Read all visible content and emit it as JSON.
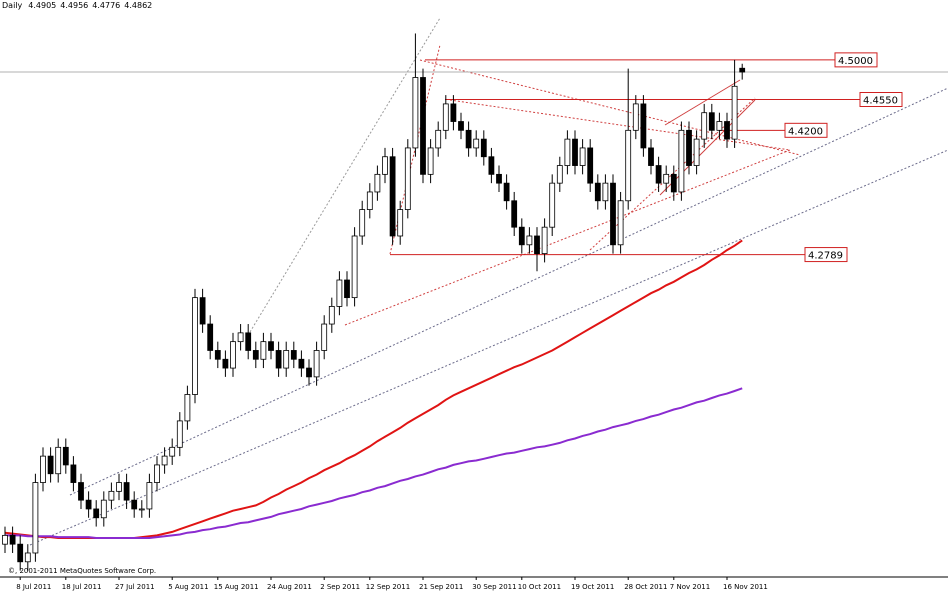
{
  "chart_data": {
    "type": "candlestick",
    "title": "Daily",
    "copyright": "©, 2001-2011 MetaQuotes Software Corp.",
    "categories": [
      null,
      null,
      "8 Jul 2011",
      null,
      null,
      null,
      null,
      null,
      "18 Jul 2011",
      null,
      null,
      null,
      null,
      null,
      null,
      "27 Jul 2011",
      null,
      null,
      null,
      null,
      null,
      null,
      "5 Aug 2011",
      null,
      null,
      null,
      null,
      null,
      "15 Aug 2011",
      null,
      null,
      null,
      null,
      null,
      null,
      "24 Aug 2011",
      null,
      null,
      null,
      null,
      null,
      null,
      "2 Sep 2011",
      null,
      null,
      null,
      null,
      null,
      "12 Sep 2011",
      null,
      null,
      null,
      null,
      null,
      null,
      "21 Sep 2011",
      null,
      null,
      null,
      null,
      null,
      null,
      "30 Sep 2011",
      null,
      null,
      null,
      null,
      null,
      "10 Oct 2011",
      null,
      null,
      null,
      null,
      null,
      null,
      "19 Oct 2011",
      null,
      null,
      null,
      null,
      null,
      null,
      "28 Oct 2011",
      null,
      null,
      null,
      null,
      null,
      "7 Nov 2011",
      null,
      null,
      null,
      null,
      null,
      null,
      "16 Nov 2011",
      null,
      null
    ],
    "open": [
      3.95,
      3.96,
      3.95,
      3.93,
      3.94,
      4.02,
      4.05,
      4.03,
      4.06,
      4.04,
      4.02,
      4.0,
      3.99,
      3.98,
      4.0,
      4.01,
      4.02,
      4.0,
      3.99,
      3.99,
      4.02,
      4.04,
      4.05,
      4.06,
      4.09,
      4.12,
      4.23,
      4.2,
      4.17,
      4.16,
      4.15,
      4.18,
      4.19,
      4.17,
      4.16,
      4.18,
      4.17,
      4.15,
      4.17,
      4.16,
      4.15,
      4.14,
      4.17,
      4.2,
      4.22,
      4.25,
      4.23,
      4.3,
      4.33,
      4.35,
      4.37,
      4.39,
      4.3,
      4.33,
      4.4,
      4.48,
      4.37,
      4.4,
      4.42,
      4.45,
      4.43,
      4.42,
      4.4,
      4.41,
      4.39,
      4.37,
      4.36,
      4.34,
      4.31,
      4.29,
      4.3,
      4.28,
      4.31,
      4.36,
      4.38,
      4.41,
      4.38,
      4.4,
      4.36,
      4.34,
      4.36,
      4.29,
      4.34,
      4.42,
      4.45,
      4.4,
      4.38,
      4.36,
      4.37,
      4.35,
      4.42,
      4.38,
      4.41,
      4.44,
      4.42,
      4.43,
      4.41,
      4.4905
    ],
    "high": [
      3.97,
      3.97,
      3.96,
      3.95,
      4.03,
      4.06,
      4.06,
      4.07,
      4.07,
      4.05,
      4.03,
      4.01,
      4.0,
      4.01,
      4.02,
      4.03,
      4.03,
      4.01,
      4.0,
      4.03,
      4.05,
      4.06,
      4.07,
      4.1,
      4.13,
      4.24,
      4.24,
      4.21,
      4.18,
      4.17,
      4.19,
      4.2,
      4.2,
      4.18,
      4.19,
      4.19,
      4.18,
      4.18,
      4.18,
      4.17,
      4.16,
      4.18,
      4.21,
      4.23,
      4.26,
      4.26,
      4.31,
      4.34,
      4.36,
      4.38,
      4.4,
      4.4,
      4.34,
      4.41,
      4.53,
      4.49,
      4.41,
      4.43,
      4.46,
      4.46,
      4.44,
      4.43,
      4.42,
      4.42,
      4.4,
      4.38,
      4.37,
      4.35,
      4.32,
      4.31,
      4.31,
      4.32,
      4.37,
      4.39,
      4.42,
      4.42,
      4.41,
      4.41,
      4.37,
      4.37,
      4.37,
      4.35,
      4.49,
      4.46,
      4.46,
      4.41,
      4.39,
      4.38,
      4.38,
      4.43,
      4.43,
      4.42,
      4.45,
      4.45,
      4.44,
      4.44,
      4.5,
      4.4956
    ],
    "low": [
      3.94,
      3.94,
      3.92,
      3.92,
      3.93,
      4.01,
      4.02,
      4.02,
      4.03,
      4.01,
      3.99,
      3.98,
      3.97,
      3.97,
      3.99,
      4.0,
      3.99,
      3.98,
      3.98,
      3.98,
      4.01,
      4.03,
      4.04,
      4.05,
      4.08,
      4.11,
      4.19,
      4.16,
      4.15,
      4.14,
      4.14,
      4.17,
      4.16,
      4.15,
      4.15,
      4.16,
      4.14,
      4.14,
      4.15,
      4.14,
      4.13,
      4.13,
      4.16,
      4.19,
      4.21,
      4.22,
      4.22,
      4.29,
      4.32,
      4.34,
      4.36,
      4.29,
      4.29,
      4.32,
      4.39,
      4.36,
      4.36,
      4.39,
      4.41,
      4.42,
      4.41,
      4.39,
      4.39,
      4.38,
      4.36,
      4.35,
      4.33,
      4.3,
      4.28,
      4.28,
      4.26,
      4.27,
      4.3,
      4.35,
      4.37,
      4.37,
      4.37,
      4.35,
      4.33,
      4.33,
      4.28,
      4.28,
      4.33,
      4.41,
      4.39,
      4.37,
      4.35,
      4.35,
      4.34,
      4.34,
      4.37,
      4.37,
      4.4,
      4.41,
      4.41,
      4.4,
      4.4,
      4.4776
    ],
    "close": [
      3.96,
      3.95,
      3.93,
      3.94,
      4.02,
      4.05,
      4.03,
      4.06,
      4.04,
      4.02,
      4.0,
      3.99,
      3.98,
      4.0,
      4.01,
      4.02,
      4.0,
      3.99,
      3.99,
      4.02,
      4.04,
      4.05,
      4.06,
      4.09,
      4.12,
      4.23,
      4.2,
      4.17,
      4.16,
      4.15,
      4.18,
      4.19,
      4.17,
      4.16,
      4.18,
      4.17,
      4.15,
      4.17,
      4.16,
      4.15,
      4.14,
      4.17,
      4.2,
      4.22,
      4.25,
      4.23,
      4.3,
      4.33,
      4.35,
      4.37,
      4.39,
      4.3,
      4.33,
      4.4,
      4.48,
      4.37,
      4.4,
      4.42,
      4.45,
      4.43,
      4.42,
      4.4,
      4.41,
      4.39,
      4.37,
      4.36,
      4.34,
      4.31,
      4.29,
      4.3,
      4.28,
      4.31,
      4.36,
      4.38,
      4.41,
      4.38,
      4.4,
      4.36,
      4.34,
      4.36,
      4.29,
      4.34,
      4.42,
      4.45,
      4.4,
      4.38,
      4.36,
      4.37,
      4.35,
      4.42,
      4.38,
      4.41,
      4.44,
      4.42,
      4.43,
      4.41,
      4.47,
      4.4862
    ],
    "series": [
      {
        "color": "#e01414",
        "values": [
          3.963,
          3.962,
          3.961,
          3.96,
          3.959,
          3.958,
          3.958,
          3.957,
          3.957,
          3.957,
          3.957,
          3.957,
          3.957,
          3.957,
          3.957,
          3.957,
          3.957,
          3.957,
          3.958,
          3.959,
          3.96,
          3.962,
          3.964,
          3.967,
          3.97,
          3.973,
          3.976,
          3.979,
          3.982,
          3.985,
          3.988,
          3.99,
          3.992,
          3.994,
          3.998,
          4.003,
          4.007,
          4.012,
          4.016,
          4.02,
          4.025,
          4.029,
          4.034,
          4.038,
          4.042,
          4.047,
          4.051,
          4.056,
          4.061,
          4.067,
          4.072,
          4.077,
          4.082,
          4.088,
          4.093,
          4.098,
          4.103,
          4.108,
          4.114,
          4.119,
          4.123,
          4.127,
          4.131,
          4.135,
          4.139,
          4.143,
          4.147,
          4.151,
          4.154,
          4.158,
          4.162,
          4.166,
          4.17,
          4.175,
          4.18,
          4.185,
          4.19,
          4.195,
          4.2,
          4.205,
          4.21,
          4.215,
          4.22,
          4.225,
          4.23,
          4.235,
          4.239,
          4.244,
          4.248,
          4.253,
          4.258,
          4.262,
          4.267,
          4.273,
          4.278,
          4.284,
          4.289,
          4.295
        ]
      },
      {
        "color": "#8a2bd0",
        "values": [
          3.96,
          3.96,
          3.96,
          3.959,
          3.959,
          3.959,
          3.959,
          3.958,
          3.958,
          3.958,
          3.958,
          3.958,
          3.957,
          3.957,
          3.957,
          3.957,
          3.957,
          3.957,
          3.957,
          3.957,
          3.958,
          3.959,
          3.96,
          3.961,
          3.963,
          3.964,
          3.966,
          3.967,
          3.969,
          3.97,
          3.972,
          3.974,
          3.975,
          3.977,
          3.979,
          3.981,
          3.984,
          3.986,
          3.988,
          3.99,
          3.993,
          3.995,
          3.997,
          3.999,
          4.002,
          4.004,
          4.006,
          4.009,
          4.011,
          4.014,
          4.016,
          4.019,
          4.022,
          4.024,
          4.027,
          4.029,
          4.032,
          4.035,
          4.037,
          4.04,
          4.042,
          4.044,
          4.045,
          4.047,
          4.049,
          4.051,
          4.053,
          4.054,
          4.056,
          4.058,
          4.06,
          4.061,
          4.063,
          4.065,
          4.068,
          4.07,
          4.073,
          4.075,
          4.078,
          4.08,
          4.083,
          4.085,
          4.087,
          4.09,
          4.092,
          4.095,
          4.097,
          4.1,
          4.103,
          4.105,
          4.108,
          4.111,
          4.113,
          4.116,
          4.119,
          4.121,
          4.124,
          4.127
        ]
      }
    ],
    "levels": [
      {
        "value": 4.5,
        "label": "4.5000"
      },
      {
        "value": 4.455,
        "label": "4.4550"
      },
      {
        "value": 4.42,
        "label": "4.4200"
      },
      {
        "value": 4.2789,
        "label": "4.2789"
      }
    ],
    "level_color": "#d02020",
    "up_color": "#ffffff",
    "down_color": "#000000",
    "ylim": [
      3.915,
      4.568
    ],
    "grid": false
  }
}
